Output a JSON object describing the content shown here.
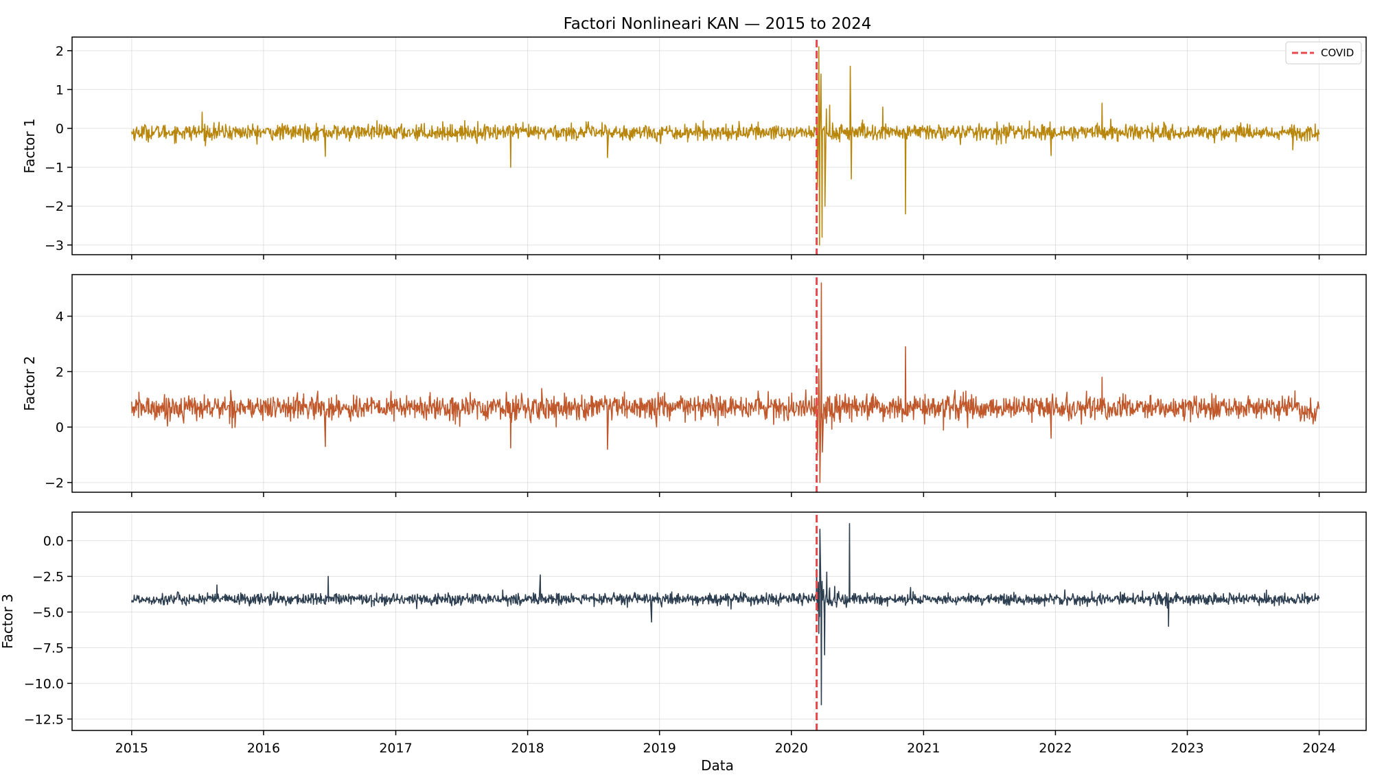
{
  "chart_data": {
    "type": "line",
    "title": "Factori Nonlineari KAN — 2015 to 2024",
    "xlabel": "Data",
    "x_range": [
      "2015-01-01",
      "2024-01-01"
    ],
    "xlim": [
      "2014-07-20",
      "2024-05-10"
    ],
    "x_ticks": [
      {
        "date": "2015-01-01",
        "label": "2015"
      },
      {
        "date": "2016-01-01",
        "label": "2016"
      },
      {
        "date": "2017-01-01",
        "label": "2017"
      },
      {
        "date": "2018-01-01",
        "label": "2018"
      },
      {
        "date": "2019-01-01",
        "label": "2019"
      },
      {
        "date": "2020-01-01",
        "label": "2020"
      },
      {
        "date": "2021-01-01",
        "label": "2021"
      },
      {
        "date": "2022-01-01",
        "label": "2022"
      },
      {
        "date": "2023-01-01",
        "label": "2023"
      },
      {
        "date": "2024-01-01",
        "label": "2024"
      }
    ],
    "event_line": {
      "date": "2020-03-11",
      "label": "COVID",
      "color": "#e8484b",
      "style": "dashed"
    },
    "legend": {
      "position": "top-right",
      "panel": 0,
      "entries": [
        "COVID"
      ]
    },
    "grid": true,
    "panels": [
      {
        "ylabel": "Factor 1",
        "color": "#b8860b",
        "ylim": [
          -3.25,
          2.35
        ],
        "y_ticks": [
          {
            "v": 2,
            "label": "2"
          },
          {
            "v": 1,
            "label": "1"
          },
          {
            "v": 0,
            "label": "0"
          },
          {
            "v": -1,
            "label": "−1"
          },
          {
            "v": -2,
            "label": "−2"
          },
          {
            "v": -3,
            "label": "−3"
          }
        ],
        "baseline": -0.1,
        "noise_sd": 0.1,
        "shock_scale": 1.0,
        "spikes": [
          {
            "date": "2015-07-15",
            "value": 0.42
          },
          {
            "date": "2016-06-20",
            "value": -0.72
          },
          {
            "date": "2017-11-15",
            "value": -1.0
          },
          {
            "date": "2018-08-10",
            "value": -0.75
          },
          {
            "date": "2018-12-15",
            "value": 0.35
          },
          {
            "date": "2019-10-05",
            "value": -0.55
          },
          {
            "date": "2020-03-13",
            "value": -1.5
          },
          {
            "date": "2020-03-17",
            "value": 2.1
          },
          {
            "date": "2020-03-19",
            "value": -3.0
          },
          {
            "date": "2020-03-23",
            "value": 1.4
          },
          {
            "date": "2020-03-26",
            "value": -2.8
          },
          {
            "date": "2020-03-29",
            "value": 1.2
          },
          {
            "date": "2020-04-03",
            "value": -2.0
          },
          {
            "date": "2020-04-07",
            "value": 0.5
          },
          {
            "date": "2020-04-11",
            "value": -1.4
          },
          {
            "date": "2020-04-16",
            "value": 0.6
          },
          {
            "date": "2020-05-10",
            "value": -1.1
          },
          {
            "date": "2020-06-12",
            "value": 1.6
          },
          {
            "date": "2020-06-15",
            "value": -1.3
          },
          {
            "date": "2020-09-10",
            "value": 0.55
          },
          {
            "date": "2020-11-12",
            "value": -2.2
          },
          {
            "date": "2021-12-20",
            "value": -0.7
          },
          {
            "date": "2022-05-10",
            "value": 0.65
          },
          {
            "date": "2023-10-20",
            "value": -0.55
          }
        ]
      },
      {
        "ylabel": "Factor 2",
        "color": "#c0582b",
        "ylim": [
          -2.35,
          5.5
        ],
        "y_ticks": [
          {
            "v": 4,
            "label": "4"
          },
          {
            "v": 2,
            "label": "2"
          },
          {
            "v": 0,
            "label": "0"
          },
          {
            "v": -2,
            "label": "−2"
          }
        ],
        "baseline": 0.7,
        "noise_sd": 0.22,
        "shock_scale": 1.4,
        "spikes": [
          {
            "date": "2016-06-20",
            "value": -0.7
          },
          {
            "date": "2017-11-15",
            "value": -0.75
          },
          {
            "date": "2018-02-10",
            "value": 1.65
          },
          {
            "date": "2018-08-10",
            "value": -0.8
          },
          {
            "date": "2018-11-10",
            "value": 1.9
          },
          {
            "date": "2020-03-13",
            "value": -1.0
          },
          {
            "date": "2020-03-17",
            "value": 2.1
          },
          {
            "date": "2020-03-20",
            "value": -2.0
          },
          {
            "date": "2020-03-24",
            "value": 5.2
          },
          {
            "date": "2020-03-27",
            "value": -0.9
          },
          {
            "date": "2020-04-05",
            "value": 1.5
          },
          {
            "date": "2020-11-12",
            "value": 2.9
          },
          {
            "date": "2021-12-20",
            "value": -0.4
          },
          {
            "date": "2022-05-10",
            "value": 1.8
          }
        ]
      },
      {
        "ylabel": "Factor 3",
        "color": "#2c3e50",
        "ylim": [
          -13.3,
          2.0
        ],
        "y_ticks": [
          {
            "v": 0,
            "label": "0.0"
          },
          {
            "v": -2.5,
            "label": "−2.5"
          },
          {
            "v": -5,
            "label": "−5.0"
          },
          {
            "v": -7.5,
            "label": "−7.5"
          },
          {
            "v": -10,
            "label": "−10.0"
          },
          {
            "v": -12.5,
            "label": "−12.5"
          }
        ],
        "baseline": -4.1,
        "noise_sd": 0.2,
        "shock_scale": 2.5,
        "spikes": [
          {
            "date": "2015-08-25",
            "value": -3.1
          },
          {
            "date": "2016-06-28",
            "value": -2.5
          },
          {
            "date": "2018-02-05",
            "value": -2.4
          },
          {
            "date": "2018-12-10",
            "value": -5.7
          },
          {
            "date": "2020-03-11",
            "value": -2.0
          },
          {
            "date": "2020-03-14",
            "value": 0.7
          },
          {
            "date": "2020-03-17",
            "value": -6.5
          },
          {
            "date": "2020-03-20",
            "value": 0.8
          },
          {
            "date": "2020-03-24",
            "value": -11.5
          },
          {
            "date": "2020-03-28",
            "value": -1.5
          },
          {
            "date": "2020-04-02",
            "value": -8.0
          },
          {
            "date": "2020-04-08",
            "value": -2.2
          },
          {
            "date": "2020-06-10",
            "value": 1.2
          },
          {
            "date": "2020-06-13",
            "value": -5.5
          },
          {
            "date": "2020-11-15",
            "value": -5.5
          },
          {
            "date": "2022-05-01",
            "value": -2.7
          },
          {
            "date": "2022-11-10",
            "value": -6.0
          }
        ]
      }
    ]
  }
}
